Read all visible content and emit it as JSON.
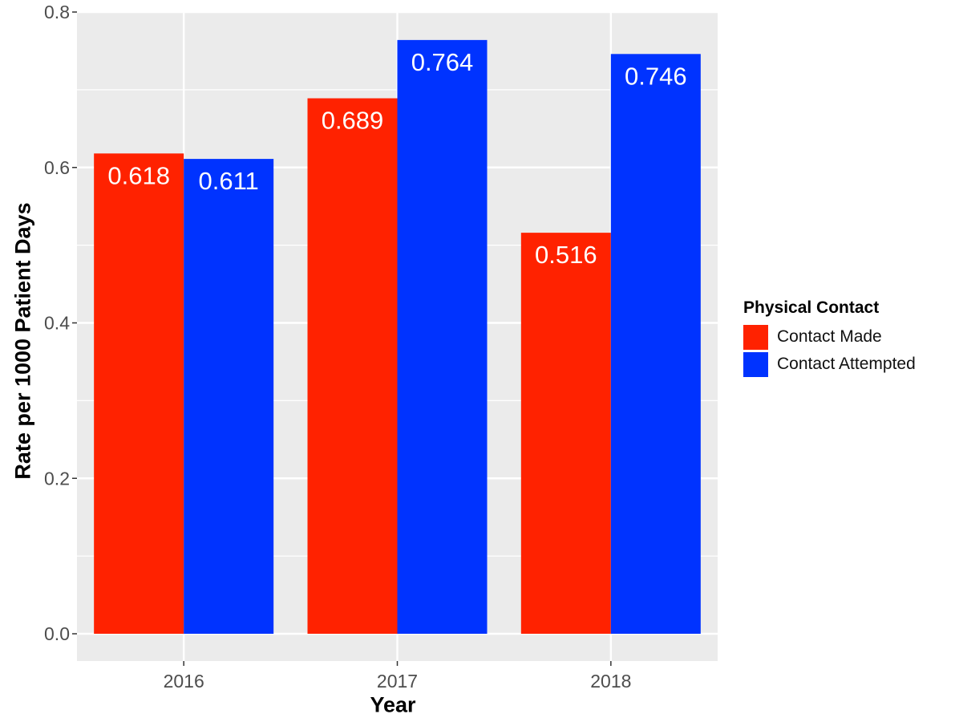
{
  "chart_data": {
    "type": "bar",
    "categories": [
      "2016",
      "2017",
      "2018"
    ],
    "series": [
      {
        "name": "Contact Made",
        "values": [
          0.618,
          0.689,
          0.516
        ],
        "color": "#ff2200"
      },
      {
        "name": "Contact Attempted",
        "values": [
          0.611,
          0.764,
          0.746
        ],
        "color": "#0033ff"
      }
    ],
    "data_labels": [
      [
        "0.618",
        "0.689",
        "0.516"
      ],
      [
        "0.611",
        "0.764",
        "0.746"
      ]
    ],
    "xlabel": "Year",
    "ylabel": "Rate per 1000 Patient Days",
    "ylim": [
      0,
      0.8
    ],
    "yticks": [
      0.0,
      0.2,
      0.4,
      0.6,
      0.8
    ],
    "ytick_labels": [
      "0.0",
      "0.2",
      "0.4",
      "0.6",
      "0.8"
    ],
    "legend": {
      "title": "Physical Contact",
      "position": "right"
    },
    "grid": true,
    "panel_background": "#ebebeb"
  }
}
